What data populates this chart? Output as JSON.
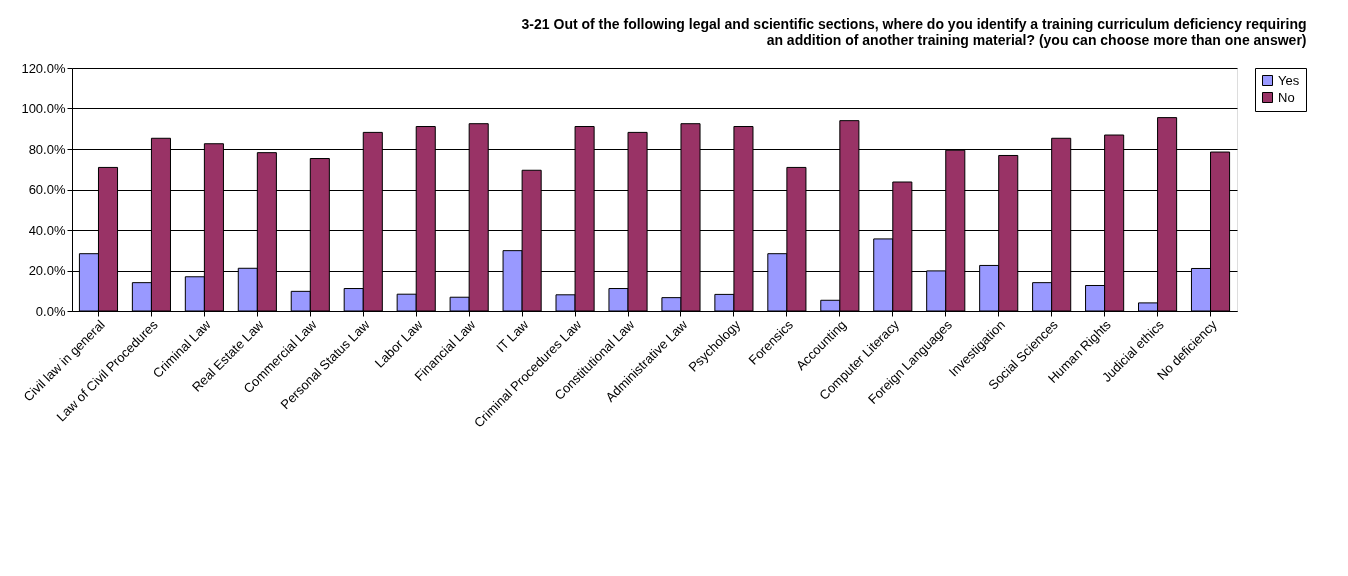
{
  "chart_data": {
    "type": "bar",
    "title": [
      "3-21 Out of the following legal and scientific sections, where do you identify a training curriculum deficiency requiring",
      "an addition of another training material? (you can choose more than one answer)"
    ],
    "categories": [
      "Civil law in general",
      "Law of Civil Procedures",
      "Criminal Law",
      "Real Estate Law",
      "Commercial Law",
      "Personal Status Law",
      "Labor Law",
      "Financial Law",
      "IT Law",
      "Criminal Procedures Law",
      "Constitutional Law",
      "Administrative Law",
      "Psychology",
      "Forensics",
      "Accounting",
      "Computer Literacy",
      "Foreign Languages",
      "Investigation",
      "Social Sciences",
      "Human Rights",
      "Judicial ethics",
      "No deficiency"
    ],
    "series": [
      {
        "name": "Yes",
        "color": "#9999ff",
        "values": [
          28.3,
          14.0,
          16.9,
          21.1,
          9.7,
          11.1,
          8.3,
          6.8,
          29.8,
          8.0,
          11.1,
          6.6,
          8.2,
          28.3,
          5.3,
          35.6,
          19.8,
          22.5,
          14.0,
          12.6,
          4.0,
          21.0
        ]
      },
      {
        "name": "No",
        "color": "#993366",
        "values": [
          70.9,
          85.3,
          82.6,
          78.2,
          75.3,
          88.2,
          91.1,
          92.5,
          69.5,
          91.1,
          88.2,
          92.5,
          91.1,
          70.9,
          94.0,
          63.7,
          79.4,
          76.8,
          85.3,
          86.9,
          95.5,
          78.5
        ]
      }
    ],
    "ylim": [
      0,
      120
    ],
    "yticks": [
      {
        "value": 0,
        "label": "0.0%"
      },
      {
        "value": 20,
        "label": "20.0%"
      },
      {
        "value": 40,
        "label": "40.0%"
      },
      {
        "value": 60,
        "label": "60.0%"
      },
      {
        "value": 80,
        "label": "80.0%"
      },
      {
        "value": 100,
        "label": "100.0%"
      },
      {
        "value": 120,
        "label": "120.0%"
      }
    ],
    "grid": "y",
    "legend": "right"
  }
}
